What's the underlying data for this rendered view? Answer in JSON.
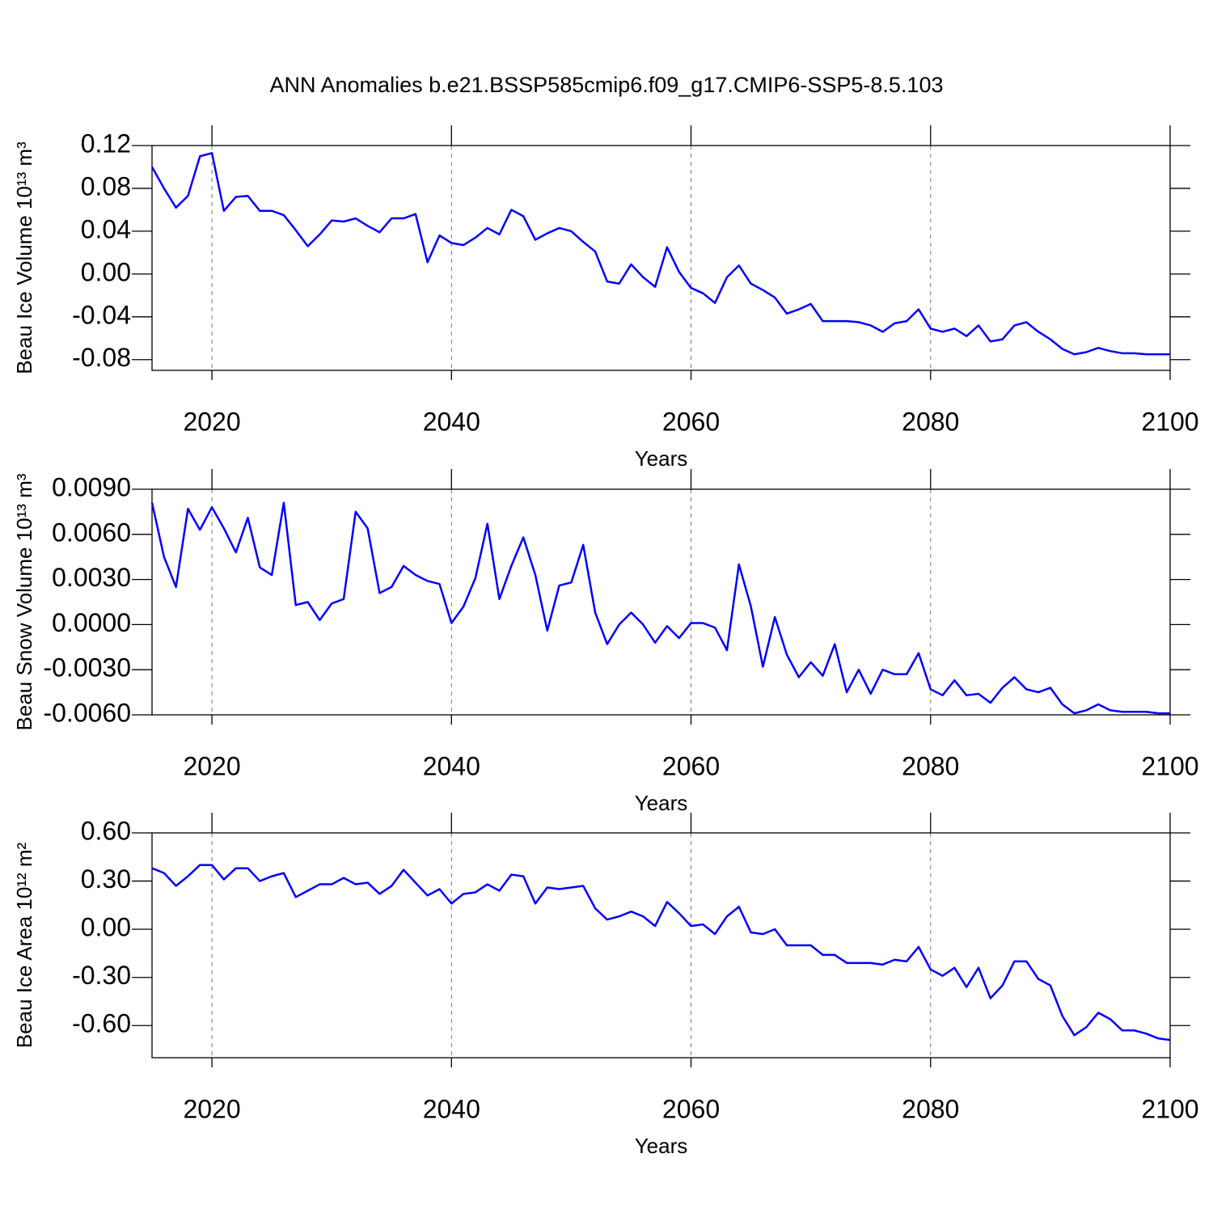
{
  "chart_data": [
    {
      "type": "line",
      "title": "ANN Anomalies b.e21.BSSP585cmip6.f09_g17.CMIP6-SSP5-8.5.103",
      "x_label": "Years",
      "y_label": "Beau Ice Volume 10¹³ m³",
      "xlim": [
        2015,
        2100
      ],
      "xticks": [
        2020,
        2040,
        2060,
        2080,
        2100
      ],
      "ylim": [
        -0.09,
        0.12
      ],
      "yticks": [
        {
          "value": -0.08,
          "label": "-0.08"
        },
        {
          "value": -0.04,
          "label": "-0.04"
        },
        {
          "value": 0,
          "label": "0.00"
        },
        {
          "value": 0.04,
          "label": "0.04"
        },
        {
          "value": 0.08,
          "label": "0.08"
        },
        {
          "value": 0.12,
          "label": "0.12"
        }
      ],
      "xgrid": true,
      "color": "#0000ff",
      "x": [
        2015,
        2016,
        2017,
        2018,
        2019,
        2020,
        2021,
        2022,
        2023,
        2024,
        2025,
        2026,
        2027,
        2028,
        2029,
        2030,
        2031,
        2032,
        2033,
        2034,
        2035,
        2036,
        2037,
        2038,
        2039,
        2040,
        2041,
        2042,
        2043,
        2044,
        2045,
        2046,
        2047,
        2048,
        2049,
        2050,
        2051,
        2052,
        2053,
        2054,
        2055,
        2056,
        2057,
        2058,
        2059,
        2060,
        2061,
        2062,
        2063,
        2064,
        2065,
        2066,
        2067,
        2068,
        2069,
        2070,
        2071,
        2072,
        2073,
        2074,
        2075,
        2076,
        2077,
        2078,
        2079,
        2080,
        2081,
        2082,
        2083,
        2084,
        2085,
        2086,
        2087,
        2088,
        2089,
        2090,
        2091,
        2092,
        2093,
        2094,
        2095,
        2096,
        2097,
        2098,
        2099,
        2100
      ],
      "values": [
        0.1,
        0.08,
        0.062,
        0.073,
        0.11,
        0.113,
        0.059,
        0.072,
        0.073,
        0.059,
        0.059,
        0.055,
        0.041,
        0.026,
        0.037,
        0.05,
        0.049,
        0.052,
        0.045,
        0.039,
        0.052,
        0.052,
        0.056,
        0.011,
        0.036,
        0.029,
        0.027,
        0.034,
        0.043,
        0.037,
        0.06,
        0.054,
        0.032,
        0.038,
        0.043,
        0.04,
        0.03,
        0.021,
        -0.007,
        -0.009,
        0.009,
        -0.003,
        -0.012,
        0.025,
        0.002,
        -0.013,
        -0.018,
        -0.027,
        -0.003,
        0.008,
        -0.009,
        -0.015,
        -0.022,
        -0.037,
        -0.033,
        -0.028,
        -0.044,
        -0.044,
        -0.044,
        -0.045,
        -0.048,
        -0.054,
        -0.046,
        -0.044,
        -0.033,
        -0.051,
        -0.054,
        -0.051,
        -0.058,
        -0.048,
        -0.063,
        -0.061,
        -0.048,
        -0.045,
        -0.054,
        -0.061,
        -0.07,
        -0.075,
        -0.073,
        -0.069,
        -0.072,
        -0.074,
        -0.074,
        -0.075,
        -0.075,
        -0.075
      ]
    },
    {
      "type": "line",
      "x_label": "Years",
      "y_label": "Beau Snow Volume 10¹³ m³",
      "xlim": [
        2015,
        2100
      ],
      "xticks": [
        2020,
        2040,
        2060,
        2080,
        2100
      ],
      "ylim": [
        -0.006,
        0.009
      ],
      "yticks": [
        {
          "value": -0.006,
          "label": "-0.0060"
        },
        {
          "value": -0.003,
          "label": "-0.0030"
        },
        {
          "value": 0,
          "label": "0.0000"
        },
        {
          "value": 0.003,
          "label": "0.0030"
        },
        {
          "value": 0.006,
          "label": "0.0060"
        },
        {
          "value": 0.009,
          "label": "0.0090"
        }
      ],
      "xgrid": true,
      "color": "#0000ff",
      "x": [
        2015,
        2016,
        2017,
        2018,
        2019,
        2020,
        2021,
        2022,
        2023,
        2024,
        2025,
        2026,
        2027,
        2028,
        2029,
        2030,
        2031,
        2032,
        2033,
        2034,
        2035,
        2036,
        2037,
        2038,
        2039,
        2040,
        2041,
        2042,
        2043,
        2044,
        2045,
        2046,
        2047,
        2048,
        2049,
        2050,
        2051,
        2052,
        2053,
        2054,
        2055,
        2056,
        2057,
        2058,
        2059,
        2060,
        2061,
        2062,
        2063,
        2064,
        2065,
        2066,
        2067,
        2068,
        2069,
        2070,
        2071,
        2072,
        2073,
        2074,
        2075,
        2076,
        2077,
        2078,
        2079,
        2080,
        2081,
        2082,
        2083,
        2084,
        2085,
        2086,
        2087,
        2088,
        2089,
        2090,
        2091,
        2092,
        2093,
        2094,
        2095,
        2096,
        2097,
        2098,
        2099,
        2100
      ],
      "values": [
        0.0081,
        0.0045,
        0.0025,
        0.0077,
        0.0063,
        0.0078,
        0.0064,
        0.0048,
        0.0071,
        0.0038,
        0.0033,
        0.0081,
        0.0013,
        0.0015,
        0.0003,
        0.0014,
        0.0017,
        0.0075,
        0.0064,
        0.0021,
        0.0025,
        0.0039,
        0.0033,
        0.0029,
        0.0027,
        0.0001,
        0.0012,
        0.0031,
        0.0067,
        0.0017,
        0.0039,
        0.0058,
        0.0033,
        -0.0004,
        0.0026,
        0.0028,
        0.0053,
        0.0008,
        -0.0013,
        0.0,
        0.0008,
        0.0,
        -0.0012,
        -0.0001,
        -0.0009,
        0.0001,
        0.0001,
        -0.0002,
        -0.0017,
        0.004,
        0.0012,
        -0.0028,
        0.0005,
        -0.002,
        -0.0035,
        -0.0025,
        -0.0034,
        -0.0013,
        -0.0045,
        -0.003,
        -0.0046,
        -0.003,
        -0.0033,
        -0.0033,
        -0.0019,
        -0.0043,
        -0.0047,
        -0.0037,
        -0.0047,
        -0.0046,
        -0.0052,
        -0.0042,
        -0.0035,
        -0.0043,
        -0.0045,
        -0.0042,
        -0.0053,
        -0.0059,
        -0.0057,
        -0.0053,
        -0.0057,
        -0.0058,
        -0.0058,
        -0.0058,
        -0.0059,
        -0.0059
      ]
    },
    {
      "type": "line",
      "x_label": "Years",
      "y_label": "Beau Ice Area 10¹² m²",
      "xlim": [
        2015,
        2100
      ],
      "xticks": [
        2020,
        2040,
        2060,
        2080,
        2100
      ],
      "ylim": [
        -0.8,
        0.6
      ],
      "yticks": [
        {
          "value": -0.6,
          "label": "-0.60"
        },
        {
          "value": -0.3,
          "label": "-0.30"
        },
        {
          "value": 0,
          "label": "0.00"
        },
        {
          "value": 0.3,
          "label": "0.30"
        },
        {
          "value": 0.6,
          "label": "0.60"
        }
      ],
      "xgrid": true,
      "color": "#0000ff",
      "x": [
        2015,
        2016,
        2017,
        2018,
        2019,
        2020,
        2021,
        2022,
        2023,
        2024,
        2025,
        2026,
        2027,
        2028,
        2029,
        2030,
        2031,
        2032,
        2033,
        2034,
        2035,
        2036,
        2037,
        2038,
        2039,
        2040,
        2041,
        2042,
        2043,
        2044,
        2045,
        2046,
        2047,
        2048,
        2049,
        2050,
        2051,
        2052,
        2053,
        2054,
        2055,
        2056,
        2057,
        2058,
        2059,
        2060,
        2061,
        2062,
        2063,
        2064,
        2065,
        2066,
        2067,
        2068,
        2069,
        2070,
        2071,
        2072,
        2073,
        2074,
        2075,
        2076,
        2077,
        2078,
        2079,
        2080,
        2081,
        2082,
        2083,
        2084,
        2085,
        2086,
        2087,
        2088,
        2089,
        2090,
        2091,
        2092,
        2093,
        2094,
        2095,
        2096,
        2097,
        2098,
        2099,
        2100
      ],
      "values": [
        0.38,
        0.35,
        0.27,
        0.33,
        0.4,
        0.4,
        0.31,
        0.38,
        0.38,
        0.3,
        0.33,
        0.35,
        0.2,
        0.24,
        0.28,
        0.28,
        0.32,
        0.28,
        0.29,
        0.22,
        0.27,
        0.37,
        0.29,
        0.21,
        0.25,
        0.16,
        0.22,
        0.23,
        0.28,
        0.24,
        0.34,
        0.33,
        0.16,
        0.26,
        0.25,
        0.26,
        0.27,
        0.13,
        0.06,
        0.08,
        0.11,
        0.08,
        0.02,
        0.17,
        0.1,
        0.02,
        0.03,
        -0.03,
        0.08,
        0.14,
        -0.02,
        -0.03,
        0.0,
        -0.1,
        -0.1,
        -0.1,
        -0.16,
        -0.16,
        -0.21,
        -0.21,
        -0.21,
        -0.22,
        -0.19,
        -0.2,
        -0.11,
        -0.25,
        -0.29,
        -0.24,
        -0.36,
        -0.24,
        -0.43,
        -0.35,
        -0.2,
        -0.2,
        -0.31,
        -0.35,
        -0.54,
        -0.66,
        -0.61,
        -0.52,
        -0.56,
        -0.63,
        -0.63,
        -0.65,
        -0.68,
        -0.69
      ]
    }
  ]
}
